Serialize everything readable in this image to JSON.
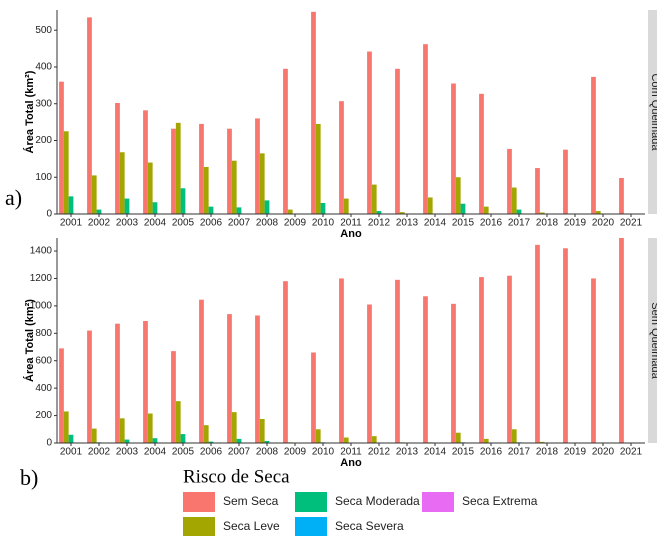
{
  "chart_data": {
    "type": "bar",
    "xlabel": "Ano",
    "ylabel": "Área Total (km²)",
    "legend_title": "Risco de Seca",
    "categories": [
      "2001",
      "2002",
      "2003",
      "2004",
      "2005",
      "2006",
      "2007",
      "2008",
      "2009",
      "2010",
      "2011",
      "2012",
      "2013",
      "2014",
      "2015",
      "2016",
      "2017",
      "2018",
      "2019",
      "2020",
      "2021"
    ],
    "series": [
      {
        "name": "Sem Seca",
        "color": "#F8766D"
      },
      {
        "name": "Seca Leve",
        "color": "#A3A500"
      },
      {
        "name": "Seca Moderada",
        "color": "#00BF7D"
      },
      {
        "name": "Seca Severa",
        "color": "#00B0F6"
      },
      {
        "name": "Seca Extrema",
        "color": "#E76BF3"
      }
    ],
    "panels": [
      {
        "label": "a)",
        "strip": "Com Queimada",
        "ylim": [
          0,
          555
        ],
        "yticks": [
          0,
          100,
          200,
          300,
          400,
          500
        ],
        "values": [
          [
            360,
            535,
            302,
            282,
            232,
            245,
            232,
            260,
            395,
            550,
            307,
            442,
            395,
            462,
            355,
            327,
            177,
            125,
            175,
            373,
            98
          ],
          [
            225,
            105,
            168,
            140,
            248,
            128,
            145,
            165,
            12,
            245,
            42,
            80,
            5,
            45,
            100,
            20,
            72,
            4,
            0,
            8,
            0
          ],
          [
            48,
            12,
            42,
            32,
            70,
            20,
            18,
            37,
            0,
            30,
            0,
            8,
            0,
            0,
            28,
            0,
            12,
            0,
            0,
            0,
            0
          ],
          [
            0,
            0,
            0,
            0,
            0,
            0,
            0,
            0,
            0,
            0,
            0,
            0,
            0,
            0,
            0,
            0,
            0,
            0,
            0,
            0,
            0
          ],
          [
            0,
            0,
            0,
            0,
            0,
            0,
            0,
            0,
            0,
            0,
            0,
            0,
            0,
            0,
            0,
            0,
            0,
            0,
            0,
            0,
            0
          ]
        ]
      },
      {
        "label": "b)",
        "strip": "Sem Queimada",
        "ylim": [
          0,
          1495
        ],
        "yticks": [
          0,
          200,
          400,
          600,
          800,
          1000,
          1200,
          1400
        ],
        "values": [
          [
            690,
            820,
            870,
            890,
            670,
            1045,
            940,
            930,
            1180,
            660,
            1200,
            1010,
            1190,
            1070,
            1015,
            1210,
            1220,
            1445,
            1420,
            1200,
            1495
          ],
          [
            230,
            105,
            180,
            215,
            305,
            130,
            225,
            175,
            5,
            100,
            40,
            50,
            5,
            5,
            75,
            30,
            100,
            8,
            0,
            0,
            0
          ],
          [
            60,
            5,
            25,
            35,
            65,
            10,
            30,
            15,
            0,
            5,
            0,
            0,
            0,
            0,
            5,
            0,
            5,
            0,
            0,
            0,
            0
          ],
          [
            0,
            0,
            0,
            0,
            0,
            0,
            0,
            0,
            0,
            0,
            0,
            0,
            0,
            0,
            0,
            0,
            0,
            0,
            0,
            0,
            0
          ],
          [
            0,
            0,
            0,
            0,
            0,
            0,
            0,
            0,
            0,
            0,
            0,
            0,
            0,
            0,
            0,
            0,
            0,
            0,
            0,
            0,
            0
          ]
        ]
      }
    ]
  }
}
